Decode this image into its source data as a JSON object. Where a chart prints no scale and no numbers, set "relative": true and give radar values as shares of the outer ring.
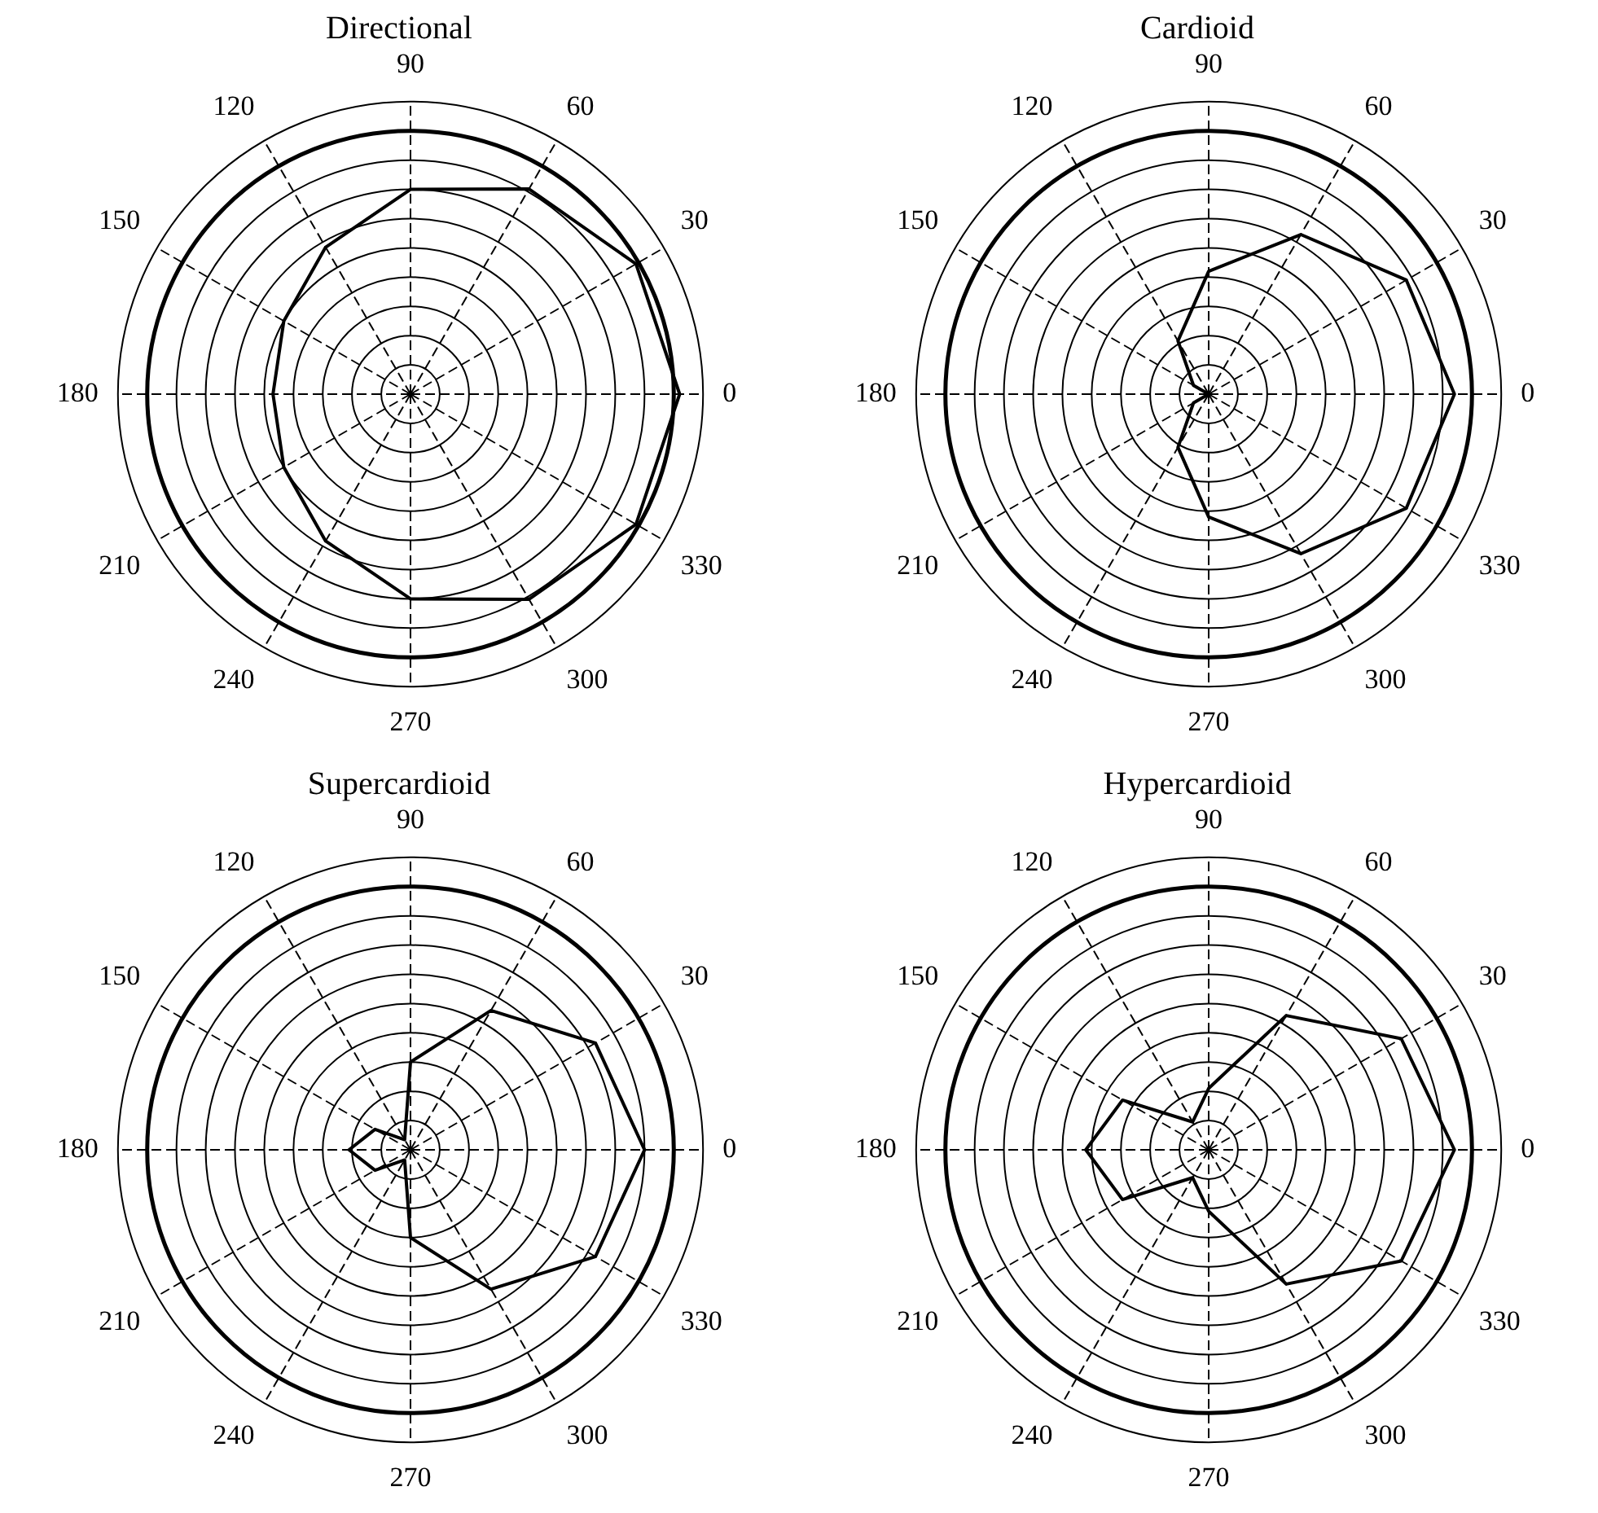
{
  "chart_data": [
    {
      "type": "radar",
      "title": "Directional",
      "categories": [
        "90",
        "60",
        "30",
        "0",
        "330",
        "300",
        "270",
        "240",
        "210",
        "180",
        "150",
        "120"
      ],
      "relative": true,
      "grid": true,
      "marker": "none",
      "series": [
        {
          "color": "#000000",
          "values": [
            0.7,
            0.81,
            0.89,
            0.92,
            0.89,
            0.81,
            0.7,
            0.58,
            0.5,
            0.47,
            0.5,
            0.58
          ]
        }
      ]
    },
    {
      "type": "radar",
      "title": "Cardioid",
      "categories": [
        "90",
        "60",
        "30",
        "0",
        "330",
        "300",
        "270",
        "240",
        "210",
        "180",
        "150",
        "120"
      ],
      "relative": true,
      "grid": true,
      "marker": "none",
      "series": [
        {
          "color": "#000000",
          "values": [
            0.42,
            0.63,
            0.78,
            0.84,
            0.78,
            0.63,
            0.42,
            0.21,
            0.06,
            0,
            0.06,
            0.21
          ]
        }
      ]
    },
    {
      "type": "radar",
      "title": "Supercardioid",
      "categories": [
        "90",
        "60",
        "30",
        "0",
        "330",
        "300",
        "270",
        "240",
        "210",
        "180",
        "150",
        "120"
      ],
      "relative": true,
      "grid": true,
      "marker": "none",
      "series": [
        {
          "color": "#000000",
          "values": [
            0.3,
            0.55,
            0.73,
            0.8,
            0.73,
            0.55,
            0.3,
            0.04,
            0.14,
            0.21,
            0.14,
            0.04
          ]
        }
      ]
    },
    {
      "type": "radar",
      "title": "Hypercardioid",
      "categories": [
        "90",
        "60",
        "30",
        "0",
        "330",
        "300",
        "270",
        "240",
        "210",
        "180",
        "150",
        "120"
      ],
      "relative": true,
      "grid": true,
      "marker": "none",
      "series": [
        {
          "color": "#000000",
          "values": [
            0.21,
            0.53,
            0.76,
            0.84,
            0.76,
            0.53,
            0.21,
            0.11,
            0.34,
            0.42,
            0.34,
            0.11
          ]
        }
      ]
    }
  ]
}
